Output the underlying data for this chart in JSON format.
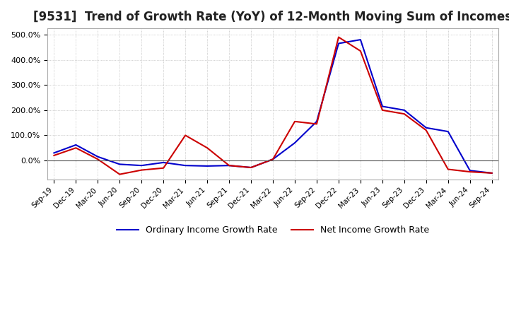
{
  "title": "[9531]  Trend of Growth Rate (YoY) of 12-Month Moving Sum of Incomes",
  "title_fontsize": 12,
  "ylim": [
    -75,
    525
  ],
  "yticks": [
    0,
    100,
    200,
    300,
    400,
    500
  ],
  "ytick_labels": [
    "0.0%",
    "100.0%",
    "200.0%",
    "300.0%",
    "400.0%",
    "500.0%"
  ],
  "background_color": "#ffffff",
  "grid_color": "#aaaaaa",
  "legend_labels": [
    "Ordinary Income Growth Rate",
    "Net Income Growth Rate"
  ],
  "line_colors": [
    "#0000cc",
    "#cc0000"
  ],
  "x_labels": [
    "Sep-19",
    "Dec-19",
    "Mar-20",
    "Jun-20",
    "Sep-20",
    "Dec-20",
    "Mar-21",
    "Jun-21",
    "Sep-21",
    "Dec-21",
    "Mar-22",
    "Jun-22",
    "Sep-22",
    "Dec-22",
    "Mar-23",
    "Jun-23",
    "Sep-23",
    "Dec-23",
    "Mar-24",
    "Jun-24",
    "Sep-24"
  ],
  "ordinary_income": [
    30,
    62,
    15,
    -15,
    -20,
    -8,
    -20,
    -22,
    -20,
    -28,
    5,
    70,
    155,
    465,
    480,
    215,
    200,
    130,
    115,
    -40,
    -50
  ],
  "net_income": [
    20,
    50,
    5,
    -55,
    -38,
    -30,
    100,
    50,
    -20,
    -28,
    5,
    155,
    145,
    490,
    435,
    200,
    185,
    120,
    -35,
    -45,
    -50
  ]
}
